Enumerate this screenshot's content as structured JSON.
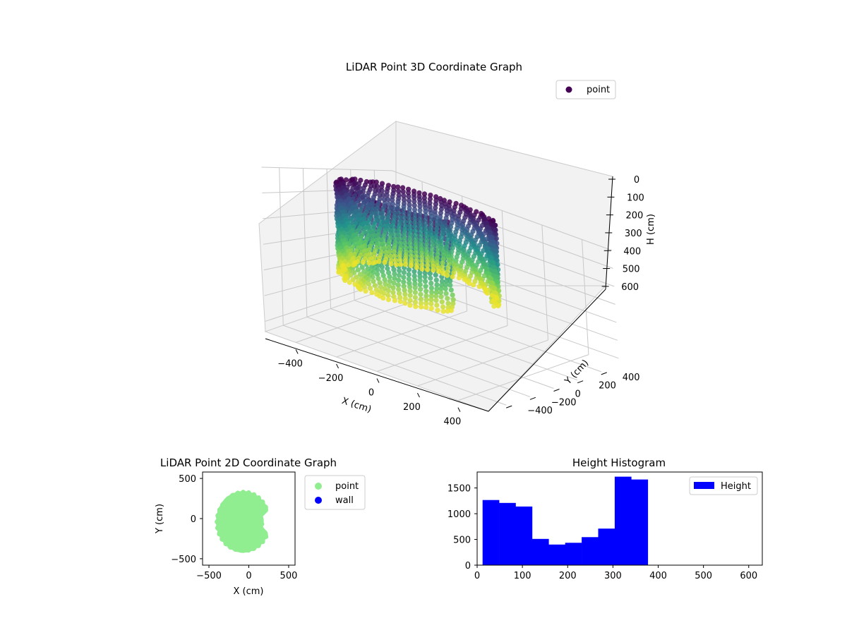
{
  "figure": {
    "background": "#ffffff"
  },
  "chart_data": [
    {
      "type": "scatter3d",
      "title": "LiDAR Point 3D Coordinate Graph",
      "xlabel": "X (cm)",
      "ylabel": "Y (cm)",
      "zlabel": "H (cm)",
      "xticks": [
        -400,
        -200,
        0,
        200,
        400
      ],
      "yticks": [
        -400,
        -200,
        0,
        200,
        400
      ],
      "zticks": [
        0,
        100,
        200,
        300,
        400,
        500,
        600
      ],
      "xlim": [
        -550,
        550
      ],
      "ylim": [
        -550,
        550
      ],
      "zlim": [
        0,
        640
      ],
      "z_inverted": true,
      "colormap": "viridis",
      "legend": {
        "position": "upper right",
        "entries": [
          {
            "label": "point",
            "color": "#440154"
          }
        ]
      },
      "pane_color": "#f2f2f2",
      "grid": true,
      "point_cloud": {
        "shape": "open cylindrical wall",
        "x_range": [
          -400,
          250
        ],
        "y_range": [
          -400,
          300
        ],
        "h_range": [
          0,
          390
        ]
      }
    },
    {
      "type": "scatter",
      "title": "LiDAR Point 2D Coordinate Graph",
      "xlabel": "X (cm)",
      "ylabel": "Y (cm)",
      "xticks": [
        -500,
        0,
        500
      ],
      "yticks": [
        500,
        0,
        -500
      ],
      "xlim": [
        -580,
        580
      ],
      "ylim": [
        -580,
        580
      ],
      "series": [
        {
          "name": "point",
          "color": "#90ee90"
        },
        {
          "name": "wall",
          "color": "#0000ff"
        }
      ],
      "legend": {
        "position": "outside right"
      },
      "point_region": {
        "x_range": [
          -390,
          250
        ],
        "y_range": [
          -400,
          320
        ]
      }
    },
    {
      "type": "bar",
      "title": "Height Histogram",
      "xlabel": "",
      "ylabel": "",
      "xticks": [
        0,
        100,
        200,
        300,
        400,
        500,
        600
      ],
      "yticks": [
        0,
        500,
        1000,
        1500
      ],
      "xlim": [
        0,
        630
      ],
      "ylim": [
        0,
        1810
      ],
      "bin_width": 36.5,
      "bins": [
        {
          "start": 12,
          "value": 1265
        },
        {
          "start": 48.5,
          "value": 1210
        },
        {
          "start": 85,
          "value": 1140
        },
        {
          "start": 121.5,
          "value": 510
        },
        {
          "start": 158,
          "value": 400
        },
        {
          "start": 194.5,
          "value": 435
        },
        {
          "start": 231,
          "value": 545
        },
        {
          "start": 267.5,
          "value": 710
        },
        {
          "start": 304,
          "value": 1720
        },
        {
          "start": 340.5,
          "value": 1665
        }
      ],
      "series": [
        {
          "name": "Height",
          "color": "#0000ff"
        }
      ],
      "legend": {
        "position": "upper right"
      }
    }
  ]
}
